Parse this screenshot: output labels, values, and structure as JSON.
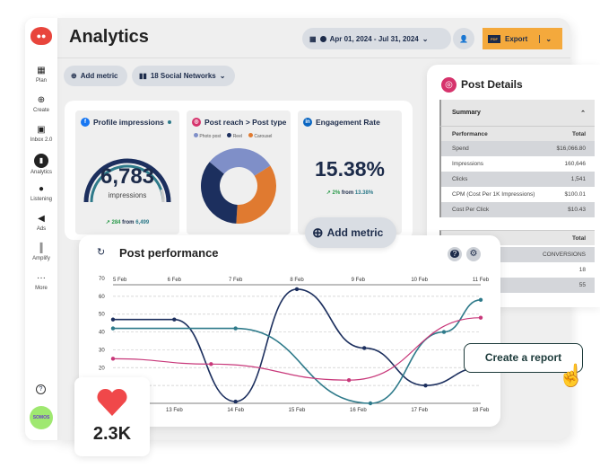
{
  "app": {
    "title": "Analytics"
  },
  "sidebar": {
    "items": [
      {
        "label": "Plan",
        "icon": "calendar-icon"
      },
      {
        "label": "Create",
        "icon": "plus-circle-icon"
      },
      {
        "label": "Inbox 2.0",
        "icon": "inbox-icon"
      },
      {
        "label": "Analytics",
        "icon": "bar-chart-icon",
        "active": true
      },
      {
        "label": "Listening",
        "icon": "lightbulb-icon"
      },
      {
        "label": "Ads",
        "icon": "megaphone-icon"
      },
      {
        "label": "Amplify",
        "icon": "amplify-icon"
      },
      {
        "label": "More",
        "icon": "more-icon"
      }
    ],
    "help_icon": "help-icon",
    "avatar": "SOMOS"
  },
  "header": {
    "date_range": "Apr 01, 2024 - Jul 31, 2024",
    "export_label": "Export",
    "pdf_badge": "PDF"
  },
  "toolbar": {
    "add_metric": "Add metric",
    "networks": "18 Social Networks"
  },
  "cards": {
    "impressions": {
      "title": "Profile impressions",
      "value": "6,783",
      "unit": "impressions",
      "change": "284",
      "from_label": "from",
      "from_value": "6,499"
    },
    "reach": {
      "title": "Post reach > Post type",
      "legend": [
        {
          "label": "Photo post",
          "color": "#7f8fc8",
          "share": 0.3
        },
        {
          "label": "Reel",
          "color": "#1c2f5e",
          "share": 0.35
        },
        {
          "label": "Carousel",
          "color": "#e07a30",
          "share": 0.35
        }
      ]
    },
    "engagement": {
      "title": "Engagement Rate",
      "value": "15.38%",
      "change": "2%",
      "from_label": "from",
      "from_value": "13.38%"
    },
    "add_metric": "Add metric"
  },
  "post_details": {
    "title": "Post Details",
    "summary": "Summary",
    "header": [
      "Performance",
      "Total"
    ],
    "rows": [
      [
        "Spend",
        "$16,066.80"
      ],
      [
        "Impressions",
        "160,646"
      ],
      [
        "Clicks",
        "1,541"
      ],
      [
        "CPM (Cost Per 1K Impressions)",
        "$100.01"
      ],
      [
        "Cost Per Click",
        "$10.43"
      ]
    ],
    "header2": "Total",
    "rows2": [
      "CONVERSIONS",
      "18",
      "55"
    ]
  },
  "chart_data": {
    "type": "line",
    "title": "Post performance",
    "ylim": [
      0,
      70
    ],
    "yticks": [
      "70",
      "60",
      "50",
      "40",
      "30",
      "20"
    ],
    "top_x_labels": [
      "5 Feb",
      "6 Feb",
      "7 Feb",
      "8 Feb",
      "9 Feb",
      "10 Feb",
      "11 Feb"
    ],
    "bottom_x_labels": [
      "13 Feb",
      "14 Feb",
      "15 Feb",
      "16 Feb",
      "17 Feb",
      "18 Feb"
    ],
    "series": [
      {
        "color": "#1c2f5e",
        "points": [
          [
            5,
            47
          ],
          [
            6,
            47
          ],
          [
            7,
            1
          ],
          [
            8,
            64
          ],
          [
            9.1,
            31
          ],
          [
            10.1,
            10
          ],
          [
            11,
            20
          ]
        ]
      },
      {
        "color": "#2e7a8a",
        "points": [
          [
            5,
            42
          ],
          [
            7,
            42
          ],
          [
            9.2,
            0
          ],
          [
            10.4,
            40
          ],
          [
            11,
            58
          ]
        ]
      },
      {
        "color": "#c8387a",
        "points": [
          [
            5,
            25
          ],
          [
            6.6,
            22
          ],
          [
            8.85,
            13
          ],
          [
            11,
            48
          ]
        ]
      }
    ]
  },
  "likes": {
    "value": "2.3K"
  },
  "cta": {
    "label": "Create a report"
  }
}
